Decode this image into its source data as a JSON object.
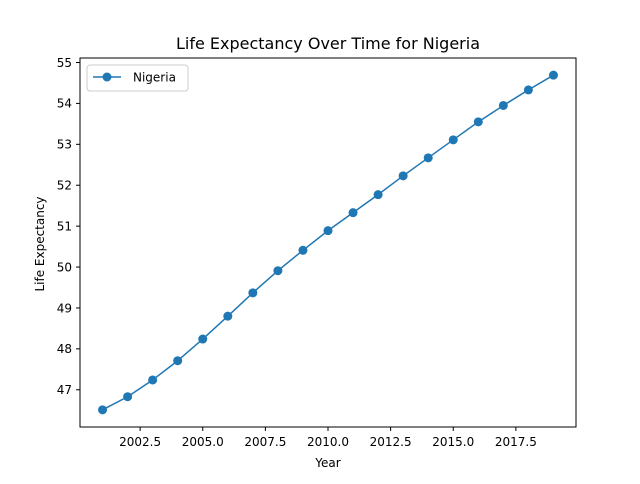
{
  "chart_data": {
    "type": "line",
    "title": "Life Expectancy Over Time for Nigeria",
    "xlabel": "Year",
    "ylabel": "Life Expectancy",
    "xlim": [
      2000.1,
      2019.9
    ],
    "ylim": [
      46.09,
      55.11
    ],
    "xticks": [
      2002.5,
      2005.0,
      2007.5,
      2010.0,
      2012.5,
      2015.0,
      2017.5
    ],
    "xtick_labels": [
      "2002.5",
      "2005.0",
      "2007.5",
      "2010.0",
      "2012.5",
      "2015.0",
      "2017.5"
    ],
    "yticks": [
      47,
      48,
      49,
      50,
      51,
      52,
      53,
      54,
      55
    ],
    "ytick_labels": [
      "47",
      "48",
      "49",
      "50",
      "51",
      "52",
      "53",
      "54",
      "55"
    ],
    "grid": false,
    "legend": {
      "position": "upper-left"
    },
    "series": [
      {
        "name": "Nigeria",
        "color": "#1f77b4",
        "marker": "circle",
        "x": [
          2001,
          2002,
          2003,
          2004,
          2005,
          2006,
          2007,
          2008,
          2009,
          2010,
          2011,
          2012,
          2013,
          2014,
          2015,
          2016,
          2017,
          2018,
          2019
        ],
        "y": [
          46.51,
          46.83,
          47.24,
          47.71,
          48.24,
          48.8,
          49.37,
          49.91,
          50.41,
          50.89,
          51.33,
          51.77,
          52.23,
          52.67,
          53.11,
          53.55,
          53.95,
          54.33,
          54.69
        ]
      }
    ]
  }
}
